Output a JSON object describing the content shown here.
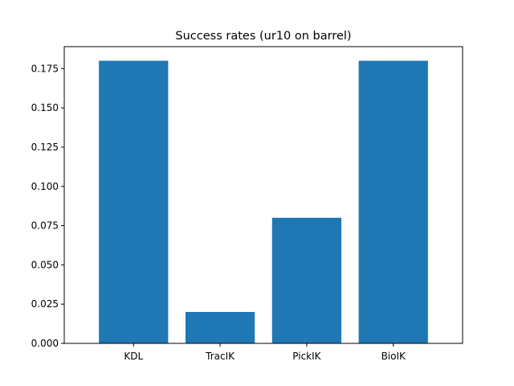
{
  "chart_data": {
    "type": "bar",
    "title": "Success rates (ur10 on barrel)",
    "categories": [
      "KDL",
      "TracIK",
      "PickIK",
      "BioIK"
    ],
    "values": [
      0.18,
      0.02,
      0.08,
      0.18
    ],
    "ylim": [
      0,
      0.189
    ],
    "yticks": [
      0.0,
      0.025,
      0.05,
      0.075,
      0.1,
      0.125,
      0.15,
      0.175
    ],
    "ytick_labels": [
      "0.000",
      "0.025",
      "0.050",
      "0.075",
      "0.100",
      "0.125",
      "0.150",
      "0.175"
    ],
    "xlabel": "",
    "ylabel": "",
    "grid": false,
    "bar_color": "#1f77b4"
  }
}
